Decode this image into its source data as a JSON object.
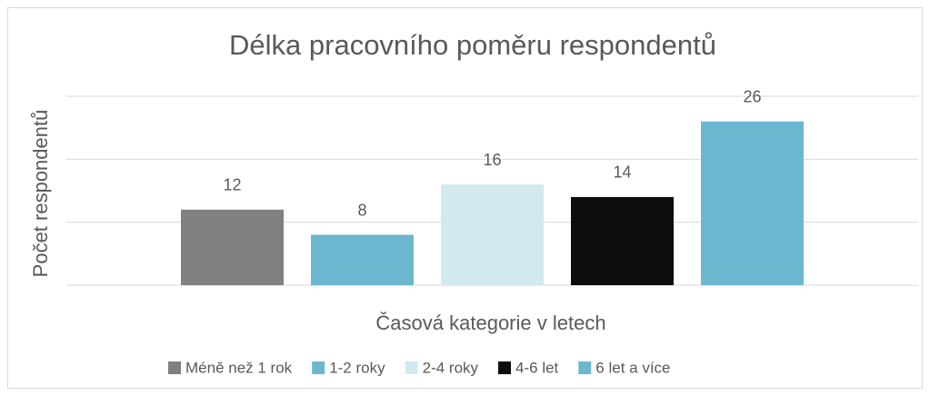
{
  "chart_data": {
    "type": "bar",
    "title": "Délka pracovního poměru respondentů",
    "x_label": "Časová kategorie v letech",
    "y_label": "Počet respondentů",
    "categories": [
      "Méně než 1 rok",
      "1-2 roky",
      "2-4 roky",
      "4-6 let",
      "6 let a více"
    ],
    "values": [
      12,
      8,
      16,
      14,
      26
    ],
    "colors": [
      "#808080",
      "#6bb7cf",
      "#d3e9f0",
      "#0d0d0d",
      "#6bb7cf"
    ],
    "ylim": [
      0,
      30
    ],
    "yticks": [
      0,
      10,
      20,
      30
    ],
    "grid": true,
    "legend": "bottom"
  }
}
